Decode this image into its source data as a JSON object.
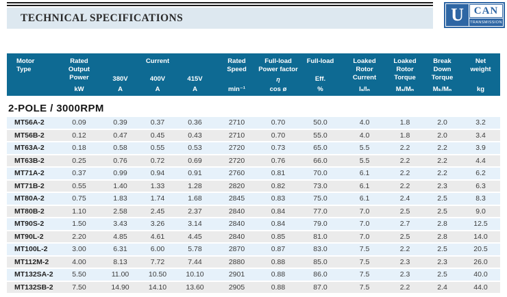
{
  "header": {
    "title": "TECHNICAL SPECIFICATIONS",
    "logo": {
      "u": "U",
      "can": "CAN",
      "transmission": "TRANSMISSION"
    }
  },
  "colors": {
    "header_teal": "#0e6a93",
    "title_bar": "#dde8f0",
    "row_blue": "#e6f1fa",
    "row_gray": "#ebebeb",
    "logo_blue": "#2e66a4"
  },
  "table": {
    "header": {
      "motor_type": "Motor\nType",
      "rated_output_power": "Rated\nOutput\nPower",
      "current": "Current",
      "voltages": [
        "380V",
        "400V",
        "415V"
      ],
      "rated_speed": "Rated\nSpeed",
      "full_load_pf_top": "Full-load\nPower factor",
      "full_load_pf_symbol": "η",
      "full_load_top": "Full-load",
      "full_load_eff": "Eff.",
      "loaked_rotor_current": "Loaked\nRotor\nCurrent",
      "loaked_rotor_torque": "Loaked\nRotor\nTorque",
      "break_down_torque": "Break\nDown\nTorque",
      "net_weight": "Net\nweight",
      "units": [
        "kW",
        "A",
        "A",
        "A",
        "min⁻¹",
        "cos ø",
        "%",
        "Iₛ/Iₙ",
        "Mₛ/Mₙ",
        "Mₖ/Mₙ",
        "kg"
      ]
    },
    "section_title": "2-POLE / 3000RPM",
    "rows": [
      {
        "type": "MT56A-2",
        "values": [
          "0.09",
          "0.39",
          "0.37",
          "0.36",
          "2710",
          "0.70",
          "50.0",
          "4.0",
          "1.8",
          "2.0",
          "3.2"
        ]
      },
      {
        "type": "MT56B-2",
        "values": [
          "0.12",
          "0.47",
          "0.45",
          "0.43",
          "2710",
          "0.70",
          "55.0",
          "4.0",
          "1.8",
          "2.0",
          "3.4"
        ]
      },
      {
        "type": "MT63A-2",
        "values": [
          "0.18",
          "0.58",
          "0.55",
          "0.53",
          "2720",
          "0.73",
          "65.0",
          "5.5",
          "2.2",
          "2.2",
          "3.9"
        ]
      },
      {
        "type": "MT63B-2",
        "values": [
          "0.25",
          "0.76",
          "0.72",
          "0.69",
          "2720",
          "0.76",
          "66.0",
          "5.5",
          "2.2",
          "2.2",
          "4.4"
        ]
      },
      {
        "type": "MT71A-2",
        "values": [
          "0.37",
          "0.99",
          "0.94",
          "0.91",
          "2760",
          "0.81",
          "70.0",
          "6.1",
          "2.2",
          "2.2",
          "6.2"
        ]
      },
      {
        "type": "MT71B-2",
        "values": [
          "0.55",
          "1.40",
          "1.33",
          "1.28",
          "2820",
          "0.82",
          "73.0",
          "6.1",
          "2.2",
          "2.3",
          "6.3"
        ]
      },
      {
        "type": "MT80A-2",
        "values": [
          "0.75",
          "1.83",
          "1.74",
          "1.68",
          "2845",
          "0.83",
          "75.0",
          "6.1",
          "2.4",
          "2.5",
          "8.3"
        ]
      },
      {
        "type": "MT80B-2",
        "values": [
          "1.10",
          "2.58",
          "2.45",
          "2.37",
          "2840",
          "0.84",
          "77.0",
          "7.0",
          "2.5",
          "2.5",
          "9.0"
        ]
      },
      {
        "type": "MT90S-2",
        "values": [
          "1.50",
          "3.43",
          "3.26",
          "3.14",
          "2840",
          "0.84",
          "79.0",
          "7.0",
          "2.7",
          "2.8",
          "12.5"
        ]
      },
      {
        "type": "MT90L-2",
        "values": [
          "2.20",
          "4.85",
          "4.61",
          "4.45",
          "2840",
          "0.85",
          "81.0",
          "7.0",
          "2.5",
          "2.8",
          "14.0"
        ]
      },
      {
        "type": "MT100L-2",
        "values": [
          "3.00",
          "6.31",
          "6.00",
          "5.78",
          "2870",
          "0.87",
          "83.0",
          "7.5",
          "2.2",
          "2.5",
          "20.5"
        ]
      },
      {
        "type": "MT112M-2",
        "values": [
          "4.00",
          "8.13",
          "7.72",
          "7.44",
          "2880",
          "0.88",
          "85.0",
          "7.5",
          "2.3",
          "2.3",
          "26.0"
        ]
      },
      {
        "type": "MT132SA-2",
        "values": [
          "5.50",
          "11.00",
          "10.50",
          "10.10",
          "2901",
          "0.88",
          "86.0",
          "7.5",
          "2.3",
          "2.5",
          "40.0"
        ]
      },
      {
        "type": "MT132SB-2",
        "values": [
          "7.50",
          "14.90",
          "14.10",
          "13.60",
          "2905",
          "0.88",
          "87.0",
          "7.5",
          "2.2",
          "2.4",
          "44.0"
        ]
      }
    ]
  }
}
